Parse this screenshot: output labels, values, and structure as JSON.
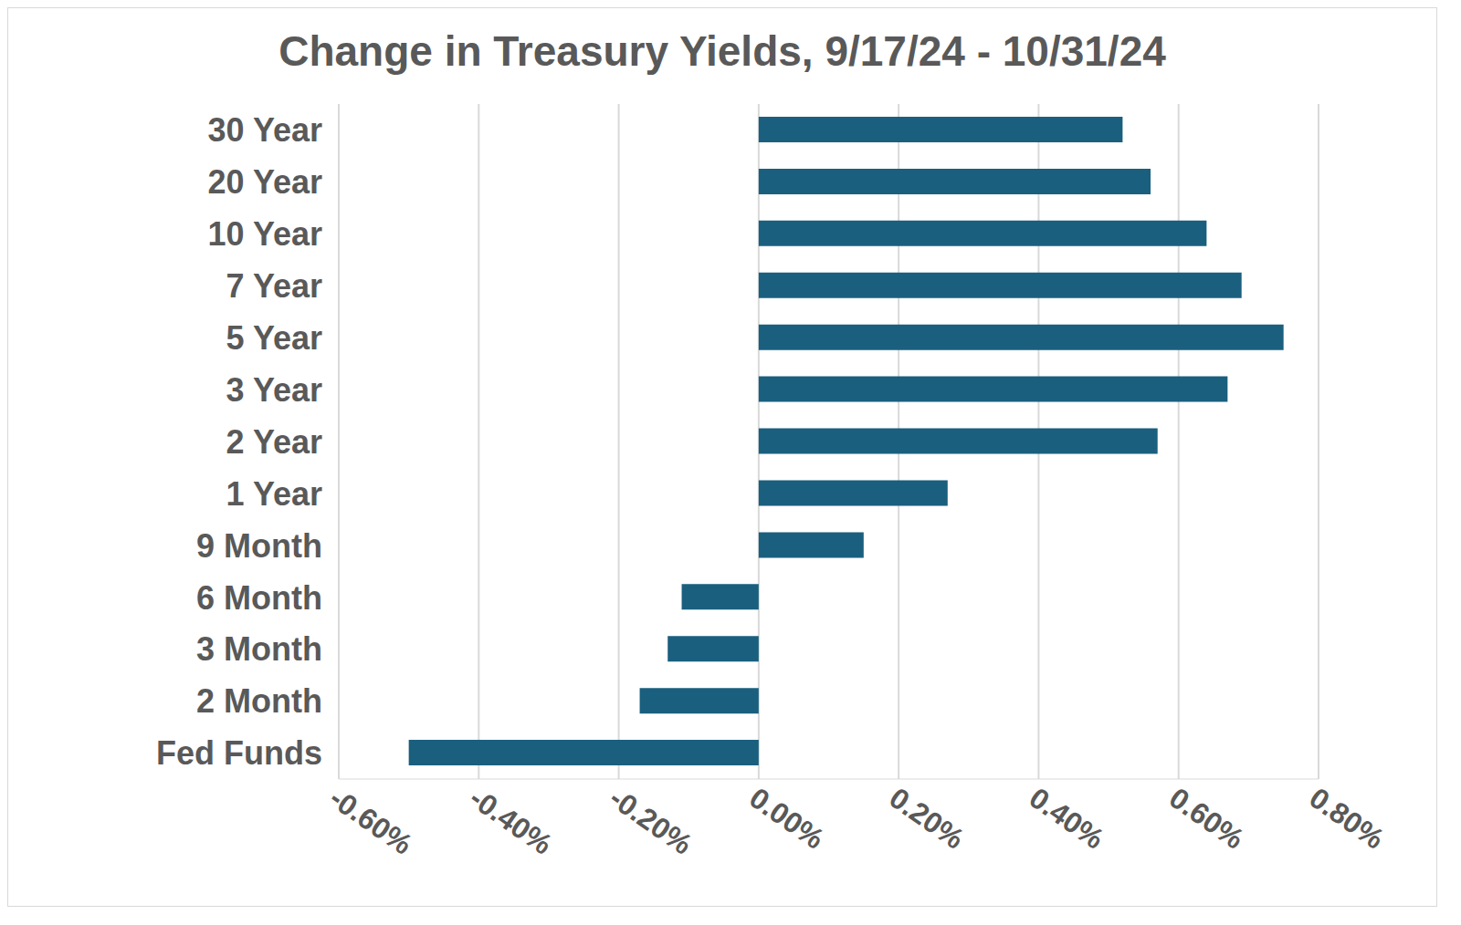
{
  "chart_data": {
    "type": "bar",
    "orientation": "horizontal",
    "title": "Change in Treasury Yields, 9/17/24 - 10/31/24",
    "categories": [
      "30 Year",
      "20 Year",
      "10 Year",
      "7 Year",
      "5 Year",
      "3 Year",
      "2 Year",
      "1 Year",
      "9 Month",
      "6 Month",
      "3 Month",
      "2 Month",
      "Fed Funds"
    ],
    "values": [
      0.52,
      0.56,
      0.64,
      0.69,
      0.75,
      0.67,
      0.57,
      0.27,
      0.15,
      -0.11,
      -0.13,
      -0.17,
      -0.5
    ],
    "color": "#1a5f7e",
    "xlim": [
      -0.6,
      0.8
    ],
    "xticks": [
      {
        "value": -0.6,
        "label": "-0.60%"
      },
      {
        "value": -0.4,
        "label": "-0.40%"
      },
      {
        "value": -0.2,
        "label": "-0.20%"
      },
      {
        "value": 0,
        "label": "0.00%"
      },
      {
        "value": 0.2,
        "label": "0.20%"
      },
      {
        "value": 0.4,
        "label": "0.40%"
      },
      {
        "value": 0.6,
        "label": "0.60%"
      },
      {
        "value": 0.8,
        "label": "0.80%"
      }
    ],
    "grid": true
  }
}
